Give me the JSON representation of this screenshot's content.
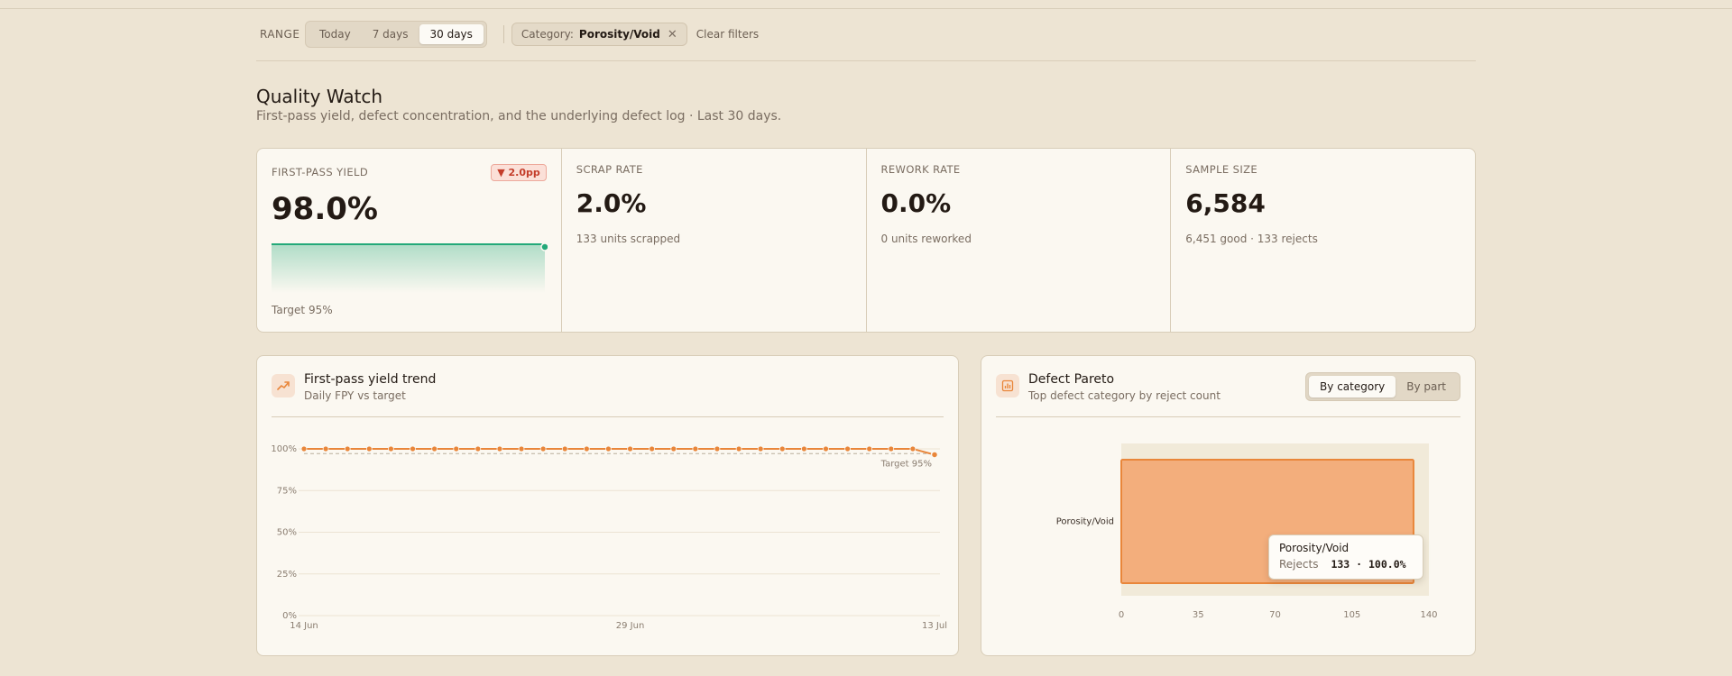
{
  "filters": {
    "range_label": "RANGE",
    "range_options": [
      "Today",
      "7 days",
      "30 days"
    ],
    "active_range": "30 days",
    "chip_key": "Category:",
    "chip_value": "Porosity/Void",
    "clear_label": "Clear filters"
  },
  "header": {
    "title": "Quality Watch",
    "subtitle": "First-pass yield, defect concentration, and the underlying defect log · Last 30 days."
  },
  "kpis": {
    "fpy": {
      "label": "FIRST-PASS YIELD",
      "value": "98.0%",
      "delta": "▼ 2.0pp",
      "target": "Target 95%"
    },
    "scrap": {
      "label": "SCRAP RATE",
      "value": "2.0%",
      "sub": "133 units scrapped"
    },
    "rework": {
      "label": "REWORK RATE",
      "value": "0.0%",
      "sub": "0 units reworked"
    },
    "sample": {
      "label": "SAMPLE SIZE",
      "value": "6,584",
      "sub": "6,451 good · 133 rejects"
    }
  },
  "trend_card": {
    "title": "First-pass yield trend",
    "subtitle": "Daily FPY vs target",
    "target_label": "Target 95%"
  },
  "pareto_card": {
    "title": "Defect Pareto",
    "subtitle": "Top defect category by reject count",
    "toggle": [
      "By category",
      "By part"
    ],
    "active_toggle": "By category",
    "tooltip": {
      "title": "Porosity/Void",
      "key": "Rejects",
      "value": "133 · 100.0%"
    }
  },
  "colors": {
    "accent": "#e9863a",
    "bar_fill": "#f3ae7c",
    "good": "#23a979",
    "danger": "#c43d2a"
  },
  "chart_data": [
    {
      "type": "line",
      "x": [
        "14 Jun",
        "15 Jun",
        "16 Jun",
        "17 Jun",
        "18 Jun",
        "19 Jun",
        "20 Jun",
        "21 Jun",
        "22 Jun",
        "23 Jun",
        "24 Jun",
        "25 Jun",
        "26 Jun",
        "27 Jun",
        "28 Jun",
        "29 Jun",
        "30 Jun",
        "1 Jul",
        "2 Jul",
        "3 Jul",
        "4 Jul",
        "5 Jul",
        "6 Jul",
        "7 Jul",
        "8 Jul",
        "9 Jul",
        "10 Jul",
        "11 Jul",
        "12 Jul",
        "13 Jul"
      ],
      "x_ticks": [
        "14 Jun",
        "29 Jun",
        "13 Jul"
      ],
      "y_ticks": [
        "100%",
        "75%",
        "50%",
        "25%",
        "0%"
      ],
      "series": [
        {
          "values": [
            100,
            100,
            100,
            100,
            100,
            100,
            100,
            100,
            100,
            100,
            100,
            100,
            100,
            100,
            100,
            100,
            100,
            100,
            100,
            100,
            100,
            100,
            100,
            100,
            100,
            100,
            100,
            100,
            100,
            96.5
          ]
        }
      ],
      "target": 95,
      "ylim": [
        0,
        100
      ],
      "grid": true
    },
    {
      "type": "bar",
      "orientation": "horizontal",
      "categories": [
        "Porosity/Void"
      ],
      "values": [
        133
      ],
      "x_ticks": [
        "0",
        "35",
        "70",
        "105",
        "140"
      ],
      "xlim": [
        0,
        140
      ]
    }
  ]
}
